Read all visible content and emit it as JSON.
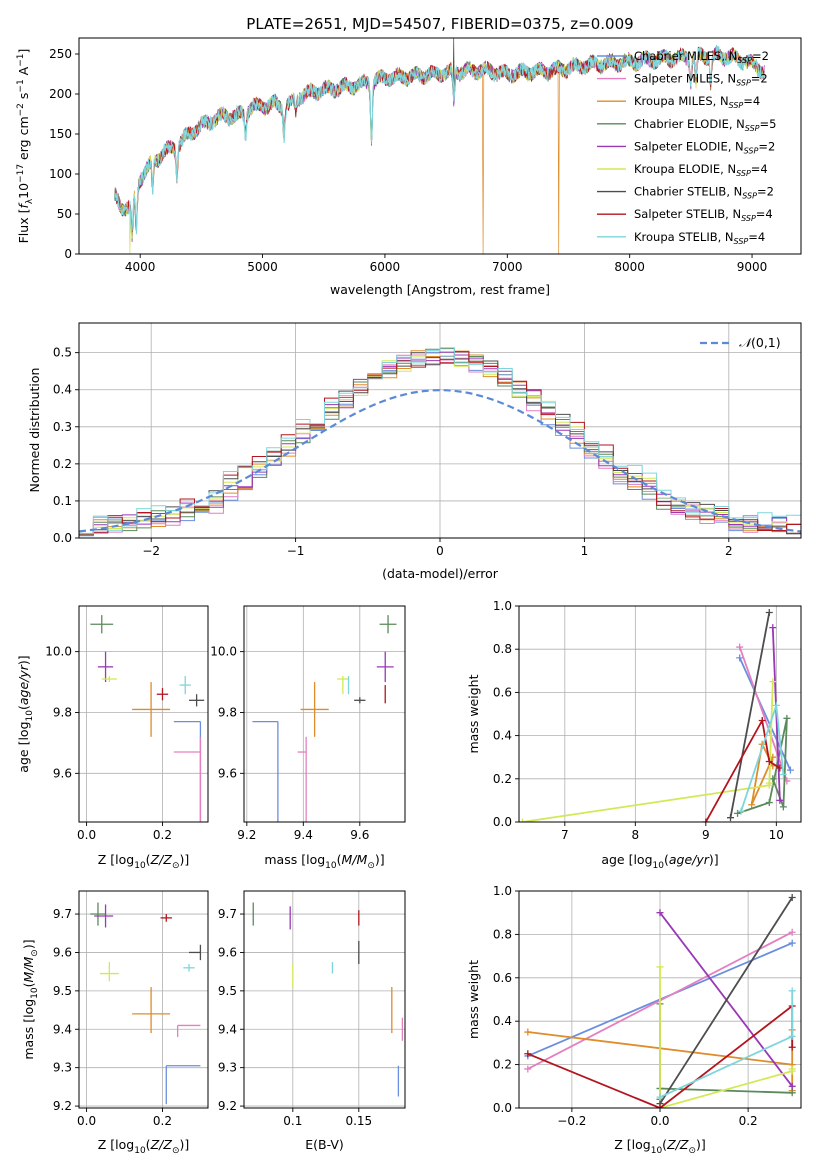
{
  "title": "PLATE=2651, MJD=54507, FIBERID=0375, z=0.009",
  "series": [
    {
      "label": "Chabrier MILES, N_SSP=2",
      "name": "Chabrier MILES, N",
      "sub": "SSP",
      "tail": "=2",
      "color": "#6a8fde"
    },
    {
      "label": "Salpeter MILES, N_SSP=2",
      "name": "Salpeter MILES, N",
      "sub": "SSP",
      "tail": "=2",
      "color": "#e47fc0"
    },
    {
      "label": "Kroupa MILES, N_SSP=4",
      "name": "Kroupa MILES, N",
      "sub": "SSP",
      "tail": "=4",
      "color": "#df8c2b"
    },
    {
      "label": "Chabrier ELODIE, N_SSP=5",
      "name": "Chabrier ELODIE, N",
      "sub": "SSP",
      "tail": "=5",
      "color": "#5b8a5b"
    },
    {
      "label": "Salpeter ELODIE, N_SSP=2",
      "name": "Salpeter ELODIE, N",
      "sub": "SSP",
      "tail": "=2",
      "color": "#9a38b6"
    },
    {
      "label": "Kroupa ELODIE, N_SSP=4",
      "name": "Kroupa ELODIE, N",
      "sub": "SSP",
      "tail": "=4",
      "color": "#d3e855"
    },
    {
      "label": "Chabrier STELIB, N_SSP=2",
      "name": "Chabrier STELIB, N",
      "sub": "SSP",
      "tail": "=2",
      "color": "#4d4d4d"
    },
    {
      "label": "Salpeter STELIB, N_SSP=4",
      "name": "Salpeter STELIB, N",
      "sub": "SSP",
      "tail": "=4",
      "color": "#b3151e"
    },
    {
      "label": "Kroupa STELIB, N_SSP=4",
      "name": "Kroupa STELIB, N",
      "sub": "SSP",
      "tail": "=4",
      "color": "#7ed6dc"
    }
  ],
  "chart_data": [
    {
      "id": "spectrum",
      "type": "line",
      "xlabel": "wavelength [Angstrom, rest frame]",
      "ylabel_parts": [
        "Flux [",
        "f",
        "λ",
        "10",
        "−17",
        " erg cm",
        "−2",
        " s",
        "−1",
        " A",
        "−1",
        "]"
      ],
      "xlim": [
        3500,
        9400
      ],
      "ylim": [
        0,
        270
      ],
      "xticks": [
        4000,
        5000,
        6000,
        7000,
        8000,
        9000
      ],
      "yticks": [
        0,
        50,
        100,
        150,
        200,
        250
      ],
      "continuum": {
        "x": [
          3790,
          3850,
          3920,
          4000,
          4100,
          4200,
          4300,
          4400,
          4500,
          4600,
          4700,
          4800,
          4900,
          5000,
          5100,
          5200,
          5300,
          5400,
          5500,
          5600,
          5800,
          6000,
          6200,
          6400,
          6600,
          6800,
          7000,
          7200,
          7400,
          7600,
          7800,
          8000,
          8200,
          8400,
          8600,
          8800,
          9000,
          9100
        ],
        "y": [
          72,
          58,
          58,
          95,
          115,
          128,
          135,
          150,
          160,
          168,
          173,
          172,
          183,
          185,
          187,
          184,
          197,
          202,
          205,
          207,
          212,
          220,
          222,
          225,
          228,
          230,
          225,
          228,
          230,
          235,
          238,
          240,
          243,
          245,
          248,
          247,
          238,
          228
        ]
      },
      "dips": [
        {
          "x": 3934,
          "y": 20
        },
        {
          "x": 3968,
          "y": 30
        },
        {
          "x": 4102,
          "y": 80
        },
        {
          "x": 4300,
          "y": 100
        },
        {
          "x": 4861,
          "y": 150
        },
        {
          "x": 5175,
          "y": 150
        },
        {
          "x": 5270,
          "y": 175
        },
        {
          "x": 5890,
          "y": 145
        },
        {
          "x": 6563,
          "y": 190
        },
        {
          "x": 8498,
          "y": 215
        },
        {
          "x": 8542,
          "y": 210
        },
        {
          "x": 8662,
          "y": 215
        }
      ],
      "spikes": [
        {
          "series": 5,
          "x": 3915,
          "y": 0
        },
        {
          "series": 2,
          "x": 6800,
          "y": 0
        },
        {
          "series": 2,
          "x": 7420,
          "y": 0
        },
        {
          "series": 6,
          "x": 6560,
          "y": 270
        }
      ]
    },
    {
      "id": "residuals",
      "type": "histogram",
      "xlabel": "(data-model)/error",
      "ylabel": "Normed distribution",
      "xlim": [
        -2.5,
        2.5
      ],
      "ylim": [
        0,
        0.58
      ],
      "xticks": [
        -2,
        -1,
        0,
        1,
        2
      ],
      "yticks": [
        0.0,
        0.1,
        0.2,
        0.3,
        0.4,
        0.5
      ],
      "bin_width": 0.1,
      "bin_start": -2.5,
      "reference": {
        "label": "N(0,1)",
        "mu": 0,
        "sigma": 1,
        "color": "#5b8bd6"
      }
    },
    {
      "id": "age-vs-Z",
      "type": "errorbar",
      "xlabel": "Z [log10(Z/Z⊙)]",
      "ylabel": "age  [log10(age/yr)]",
      "xlim": [
        -0.02,
        0.32
      ],
      "ylim": [
        9.44,
        10.15
      ],
      "xticks": [
        0.0,
        0.2
      ],
      "yticks": [
        9.6,
        9.8,
        10.0
      ],
      "points": [
        {
          "s": 0,
          "x": 0.3,
          "y": 9.77,
          "xl": 0.07,
          "xr": 0.0,
          "yl": 0.35,
          "yu": 0.0
        },
        {
          "s": 1,
          "x": 0.3,
          "y": 9.67,
          "xl": 0.07,
          "xr": 0.0,
          "yl": 0.25,
          "yu": 0.05
        },
        {
          "s": 2,
          "x": 0.17,
          "y": 9.81,
          "xl": 0.05,
          "xr": 0.05,
          "yl": 0.09,
          "yu": 0.09
        },
        {
          "s": 3,
          "x": 0.04,
          "y": 10.09,
          "xl": 0.03,
          "xr": 0.03,
          "yl": 0.03,
          "yu": 0.03
        },
        {
          "s": 4,
          "x": 0.05,
          "y": 9.95,
          "xl": 0.02,
          "xr": 0.02,
          "yl": 0.05,
          "yu": 0.05
        },
        {
          "s": 5,
          "x": 0.06,
          "y": 9.91,
          "xl": 0.02,
          "xr": 0.02,
          "yl": 0.01,
          "yu": 0.01
        },
        {
          "s": 6,
          "x": 0.29,
          "y": 9.84,
          "xl": 0.02,
          "xr": 0.02,
          "yl": 0.02,
          "yu": 0.02
        },
        {
          "s": 7,
          "x": 0.2,
          "y": 9.86,
          "xl": 0.015,
          "xr": 0.015,
          "yl": 0.02,
          "yu": 0.02
        },
        {
          "s": 8,
          "x": 0.26,
          "y": 9.89,
          "xl": 0.015,
          "xr": 0.015,
          "yl": 0.03,
          "yu": 0.03
        }
      ]
    },
    {
      "id": "age-vs-mass",
      "type": "errorbar",
      "xlabel": "mass [log10(M/M⊙)]",
      "ylabel": "",
      "xlim": [
        9.19,
        9.76
      ],
      "ylim": [
        9.44,
        10.15
      ],
      "xticks": [
        9.2,
        9.4,
        9.6
      ],
      "yticks": [
        9.6,
        9.8,
        10.0
      ],
      "points": [
        {
          "s": 0,
          "x": 9.31,
          "y": 9.77,
          "xl": 0.09,
          "xr": 0.0,
          "yl": 0.35,
          "yu": 0.0
        },
        {
          "s": 1,
          "x": 9.41,
          "y": 9.67,
          "xl": 0.03,
          "xr": 0.0,
          "yl": 0.25,
          "yu": 0.05
        },
        {
          "s": 2,
          "x": 9.44,
          "y": 9.81,
          "xl": 0.05,
          "xr": 0.05,
          "yl": 0.09,
          "yu": 0.09
        },
        {
          "s": 3,
          "x": 9.7,
          "y": 10.09,
          "xl": 0.03,
          "xr": 0.03,
          "yl": 0.03,
          "yu": 0.03
        },
        {
          "s": 4,
          "x": 9.69,
          "y": 9.95,
          "xl": 0.03,
          "xr": 0.03,
          "yl": 0.05,
          "yu": 0.05
        },
        {
          "s": 5,
          "x": 9.54,
          "y": 9.91,
          "xl": 0.02,
          "xr": 0.02,
          "yl": 0.05,
          "yu": 0.01
        },
        {
          "s": 6,
          "x": 9.6,
          "y": 9.84,
          "xl": 0.02,
          "xr": 0.02,
          "yl": 0.01,
          "yu": 0.01
        },
        {
          "s": 7,
          "x": 9.69,
          "y": 9.86,
          "xl": 0.0,
          "xr": 0.0,
          "yl": 0.03,
          "yu": 0.03
        },
        {
          "s": 8,
          "x": 9.56,
          "y": 9.89,
          "xl": 0.0,
          "xr": 0.0,
          "yl": 0.03,
          "yu": 0.03
        }
      ]
    },
    {
      "id": "weight-vs-age",
      "type": "line",
      "xlabel": "age  [log10(age/yr)]",
      "ylabel": "mass weight",
      "xlim": [
        6.35,
        10.35
      ],
      "ylim": [
        0,
        1.0
      ],
      "xticks": [
        7,
        8,
        9,
        10
      ],
      "yticks": [
        0.0,
        0.2,
        0.4,
        0.6,
        0.8,
        1.0
      ],
      "series": [
        {
          "s": 0,
          "x": [
            9.48,
            10.2
          ],
          "y": [
            0.76,
            0.24
          ]
        },
        {
          "s": 1,
          "x": [
            9.48,
            10.15
          ],
          "y": [
            0.81,
            0.19
          ]
        },
        {
          "s": 2,
          "x": [
            9.95,
            9.8,
            9.65,
            9.95
          ],
          "y": [
            0.26,
            0.36,
            0.08,
            0.3
          ]
        },
        {
          "s": 3,
          "x": [
            9.45,
            9.9,
            10.15,
            10.1,
            9.95
          ],
          "y": [
            0.04,
            0.09,
            0.48,
            0.07,
            0.2
          ]
        },
        {
          "s": 4,
          "x": [
            9.95,
            10.05
          ],
          "y": [
            0.9,
            0.1
          ]
        },
        {
          "s": 5,
          "x": [
            6.4,
            9.9,
            9.95,
            9.9
          ],
          "y": [
            0.0,
            0.17,
            0.65,
            0.18
          ]
        },
        {
          "s": 6,
          "x": [
            9.35,
            9.9
          ],
          "y": [
            0.02,
            0.97
          ]
        },
        {
          "s": 7,
          "x": [
            9.0,
            9.8,
            9.9,
            10.05
          ],
          "y": [
            0.0,
            0.47,
            0.28,
            0.25
          ]
        },
        {
          "s": 8,
          "x": [
            9.5,
            10.0,
            10.1
          ],
          "y": [
            0.05,
            0.54,
            0.22
          ]
        }
      ]
    },
    {
      "id": "mass-vs-Z",
      "type": "errorbar",
      "xlabel": "Z [log10(Z/Z⊙)]",
      "ylabel": "mass [log10(M/M⊙)]",
      "xlim": [
        -0.02,
        0.32
      ],
      "ylim": [
        9.195,
        9.76
      ],
      "xticks": [
        0.0,
        0.2
      ],
      "yticks": [
        9.2,
        9.3,
        9.4,
        9.5,
        9.6,
        9.7
      ],
      "points": [
        {
          "s": 0,
          "x": 0.21,
          "y": 9.305,
          "xl": 0.0,
          "xr": 0.09,
          "yl": 0.1,
          "yu": 0.0
        },
        {
          "s": 1,
          "x": 0.24,
          "y": 9.41,
          "xl": 0.0,
          "xr": 0.06,
          "yl": 0.03,
          "yu": 0.0
        },
        {
          "s": 2,
          "x": 0.17,
          "y": 9.44,
          "xl": 0.05,
          "xr": 0.05,
          "yl": 0.05,
          "yu": 0.07
        },
        {
          "s": 3,
          "x": 0.03,
          "y": 9.7,
          "xl": 0.02,
          "xr": 0.02,
          "yl": 0.03,
          "yu": 0.03
        },
        {
          "s": 4,
          "x": 0.05,
          "y": 9.695,
          "xl": 0.03,
          "xr": 0.02,
          "yl": 0.03,
          "yu": 0.03
        },
        {
          "s": 5,
          "x": 0.06,
          "y": 9.545,
          "xl": 0.025,
          "xr": 0.025,
          "yl": 0.02,
          "yu": 0.03
        },
        {
          "s": 6,
          "x": 0.3,
          "y": 9.6,
          "xl": 0.03,
          "xr": 0.0,
          "yl": 0.02,
          "yu": 0.02
        },
        {
          "s": 7,
          "x": 0.21,
          "y": 9.69,
          "xl": 0.015,
          "xr": 0.015,
          "yl": 0.01,
          "yu": 0.01
        },
        {
          "s": 8,
          "x": 0.27,
          "y": 9.56,
          "xl": 0.015,
          "xr": 0.015,
          "yl": 0.01,
          "yu": 0.01
        }
      ]
    },
    {
      "id": "mass-vs-EBV",
      "type": "errorbar",
      "xlabel": "E(B-V)",
      "ylabel": "",
      "xlim": [
        0.063,
        0.185
      ],
      "ylim": [
        9.195,
        9.76
      ],
      "xticks": [
        0.1,
        0.15
      ],
      "yticks": [
        9.2,
        9.3,
        9.4,
        9.5,
        9.6,
        9.7
      ],
      "points": [
        {
          "s": 0,
          "x": 0.18,
          "y": 9.305,
          "xl": 0.0,
          "xr": 0.0,
          "yl": 0.08,
          "yu": 0.0
        },
        {
          "s": 1,
          "x": 0.183,
          "y": 9.4,
          "xl": 0.0,
          "xr": 0.0,
          "yl": 0.03,
          "yu": 0.03
        },
        {
          "s": 2,
          "x": 0.175,
          "y": 9.44,
          "xl": 0.0,
          "xr": 0.0,
          "yl": 0.05,
          "yu": 0.07
        },
        {
          "s": 3,
          "x": 0.07,
          "y": 9.7,
          "xl": 0.0,
          "xr": 0.0,
          "yl": 0.03,
          "yu": 0.03
        },
        {
          "s": 4,
          "x": 0.098,
          "y": 9.69,
          "xl": 0.0,
          "xr": 0.0,
          "yl": 0.03,
          "yu": 0.03
        },
        {
          "s": 5,
          "x": 0.1,
          "y": 9.54,
          "xl": 0.0,
          "xr": 0.0,
          "yl": 0.03,
          "yu": 0.03
        },
        {
          "s": 6,
          "x": 0.15,
          "y": 9.6,
          "xl": 0.0,
          "xr": 0.0,
          "yl": 0.03,
          "yu": 0.03
        },
        {
          "s": 7,
          "x": 0.15,
          "y": 9.69,
          "xl": 0.0,
          "xr": 0.0,
          "yl": 0.02,
          "yu": 0.02
        },
        {
          "s": 8,
          "x": 0.13,
          "y": 9.56,
          "xl": 0.0,
          "xr": 0.0,
          "yl": 0.015,
          "yu": 0.015
        }
      ]
    },
    {
      "id": "weight-vs-Z",
      "type": "line",
      "xlabel": "Z [log10(Z/Z⊙)]",
      "ylabel": "mass weight",
      "xlim": [
        -0.32,
        0.32
      ],
      "ylim": [
        0,
        1.0
      ],
      "xticks": [
        -0.2,
        0.0,
        0.2
      ],
      "yticks": [
        0.0,
        0.2,
        0.4,
        0.6,
        0.8,
        1.0
      ],
      "series": [
        {
          "s": 0,
          "x": [
            -0.3,
            0.3
          ],
          "y": [
            0.24,
            0.76
          ]
        },
        {
          "s": 1,
          "x": [
            -0.3,
            0.3
          ],
          "y": [
            0.18,
            0.81
          ]
        },
        {
          "s": 2,
          "x": [
            -0.3,
            0.3,
            0.3,
            0.3
          ],
          "y": [
            0.35,
            0.2,
            0.36,
            0.08
          ]
        },
        {
          "s": 3,
          "x": [
            0.0,
            0.0,
            0.0,
            0.0,
            0.3
          ],
          "y": [
            0.04,
            0.09,
            0.48,
            0.09,
            0.07
          ]
        },
        {
          "s": 4,
          "x": [
            0.0,
            0.3
          ],
          "y": [
            0.9,
            0.1
          ]
        },
        {
          "s": 5,
          "x": [
            0.0,
            0.0,
            0.3,
            0.3
          ],
          "y": [
            0.65,
            0.0,
            0.17,
            0.18
          ]
        },
        {
          "s": 6,
          "x": [
            0.0,
            0.3
          ],
          "y": [
            0.02,
            0.97
          ]
        },
        {
          "s": 7,
          "x": [
            -0.3,
            0.0,
            0.3,
            0.3
          ],
          "y": [
            0.25,
            0.0,
            0.47,
            0.28
          ]
        },
        {
          "s": 8,
          "x": [
            0.0,
            0.3,
            0.3
          ],
          "y": [
            0.05,
            0.33,
            0.54
          ]
        }
      ]
    }
  ]
}
